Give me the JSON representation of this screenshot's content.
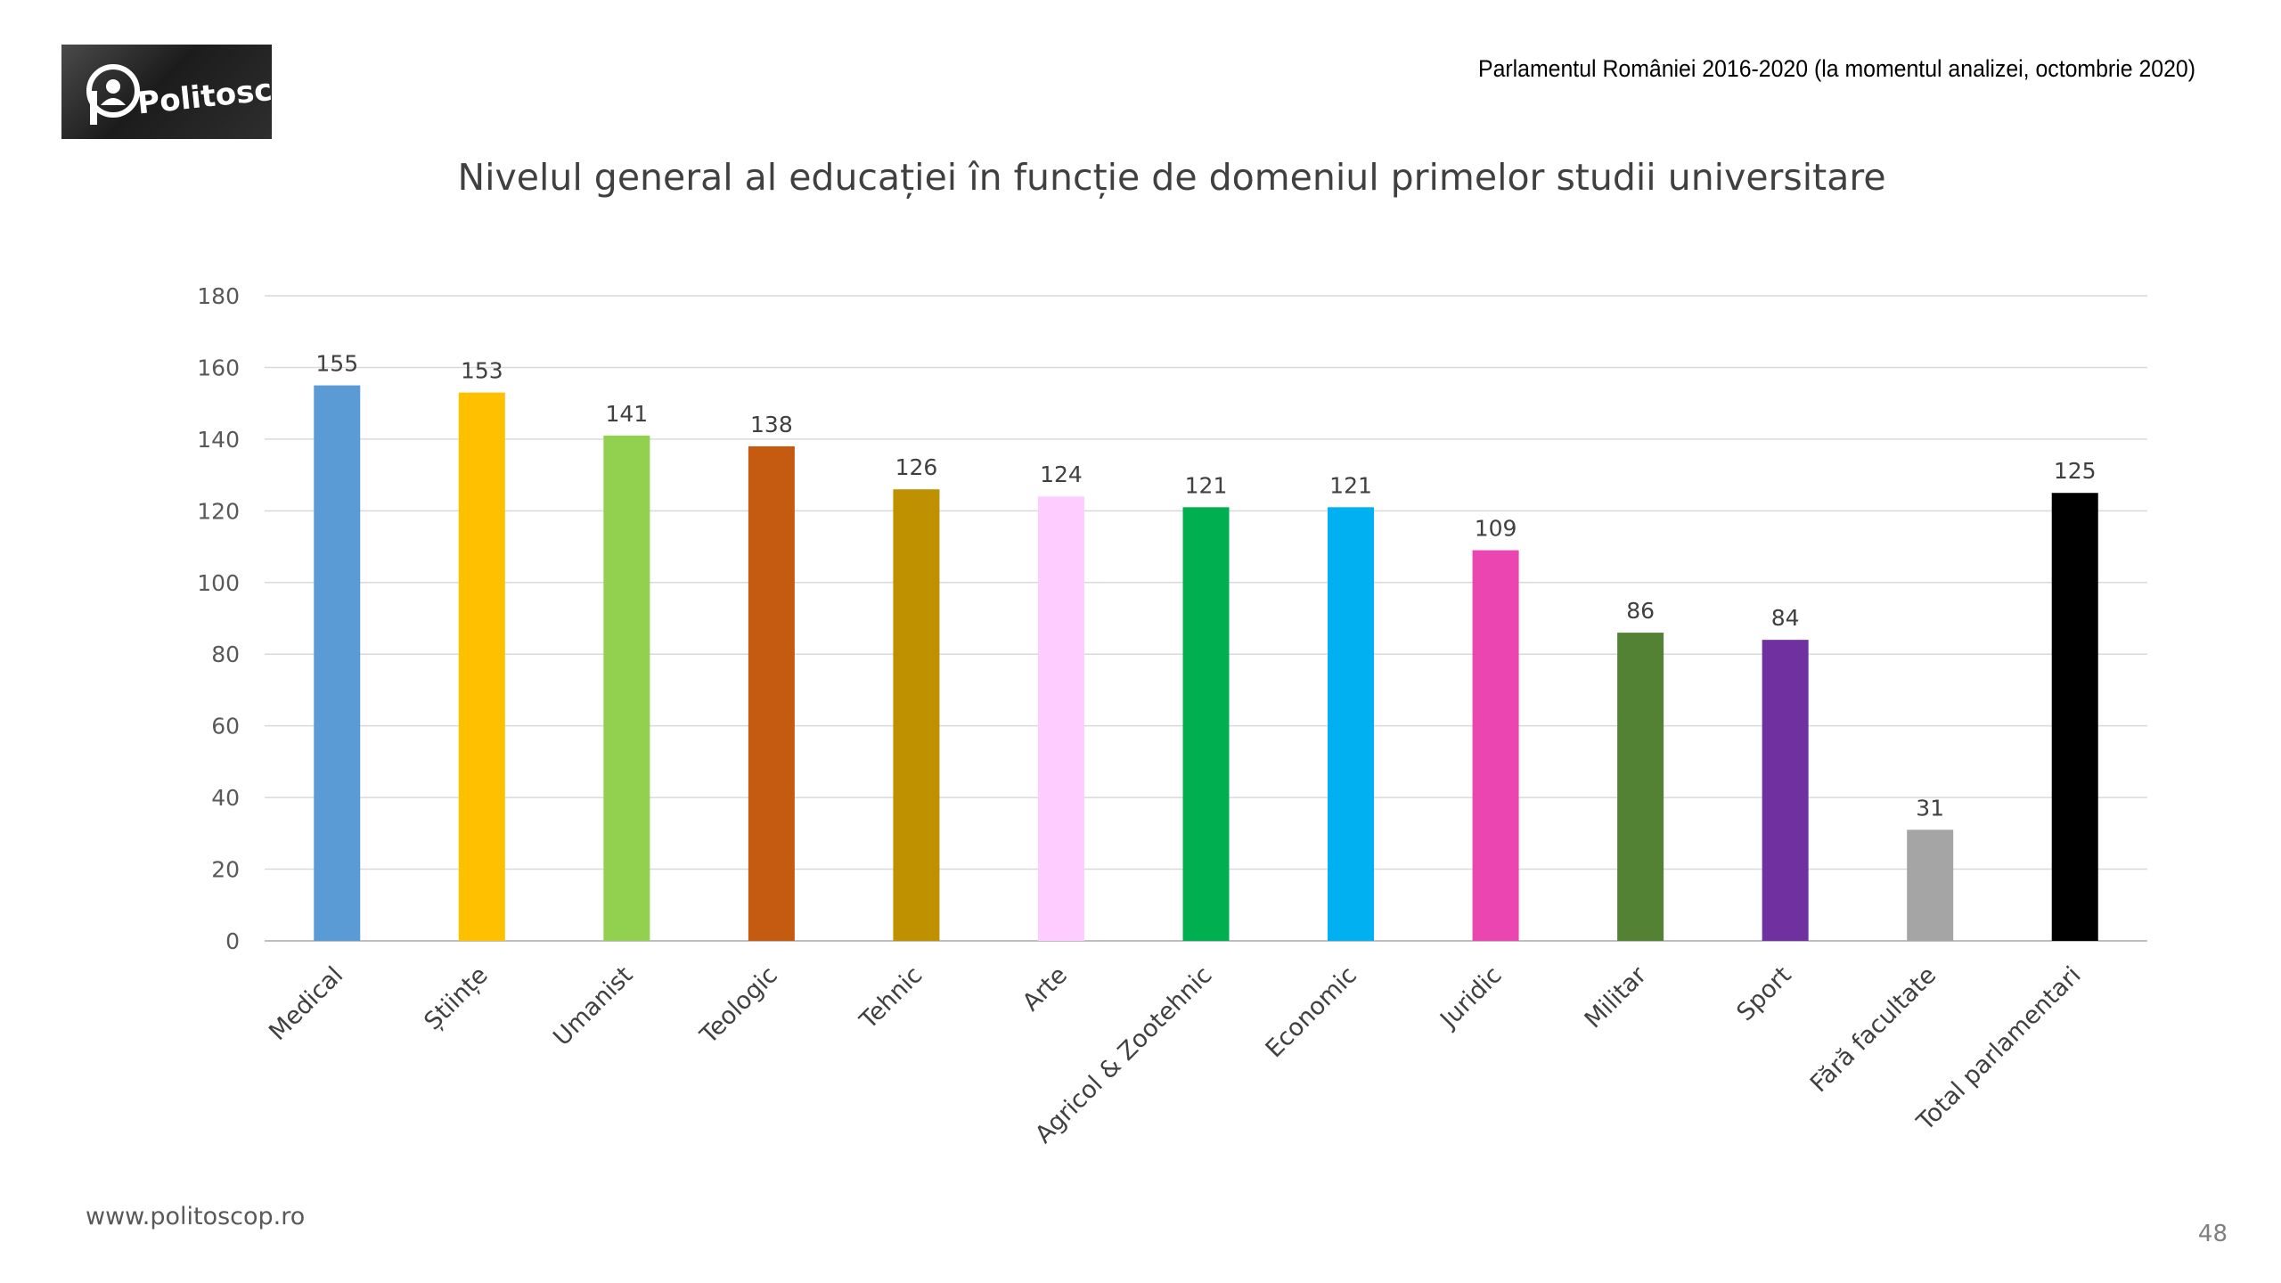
{
  "header": {
    "logo_text": "Politoscop",
    "note": "Parlamentul României 2016-2020 (la momentul analizei, octombrie 2020)"
  },
  "footer": {
    "url": "www.politoscop.ro",
    "page_number": "48"
  },
  "chart_data": {
    "type": "bar",
    "title": "Nivelul general al educației în funcție de domeniul primelor studii universitare",
    "xlabel": "",
    "ylabel": "",
    "ylim": [
      0,
      180
    ],
    "yticks": [
      0,
      20,
      40,
      60,
      80,
      100,
      120,
      140,
      160,
      180
    ],
    "grid": true,
    "legend": "none",
    "categories": [
      "Medical",
      "Științe",
      "Umanist",
      "Teologic",
      "Tehnic",
      "Arte",
      "Agricol & Zootehnic",
      "Economic",
      "Juridic",
      "Militar",
      "Sport",
      "Fără facultate",
      "Total parlamentari"
    ],
    "values": [
      155,
      153,
      141,
      138,
      126,
      124,
      121,
      121,
      109,
      86,
      84,
      31,
      125
    ],
    "data_labels": [
      "155",
      "153",
      "141",
      "138",
      "126",
      "124",
      "121",
      "121",
      "109",
      "86",
      "84",
      "31",
      "125"
    ],
    "colors": [
      "#5B9BD5",
      "#FFC000",
      "#92D050",
      "#C55A11",
      "#BF9000",
      "#FFCCFF",
      "#00B050",
      "#00B0F0",
      "#EA45B0",
      "#548235",
      "#7030A0",
      "#A5A5A5",
      "#000000"
    ]
  }
}
